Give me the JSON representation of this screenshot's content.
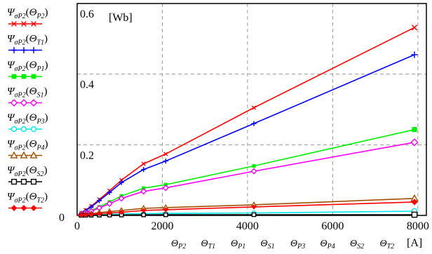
{
  "chart_data": {
    "type": "line",
    "title": "",
    "y_unit": "[Wb]",
    "x_unit": "[A]",
    "xlim": [
      0,
      8200
    ],
    "ylim": [
      0,
      0.6
    ],
    "x_ticks": [
      "0",
      "2000",
      "4000",
      "6000",
      "8000"
    ],
    "x_tick_values": [
      0,
      2000,
      4000,
      6000,
      8000
    ],
    "y_ticks": [
      "0",
      "0.2",
      "0.4",
      "0.6"
    ],
    "y_tick_values": [
      0,
      0.2,
      0.4,
      0.6
    ],
    "x_axis_variables": [
      "Θ",
      "Θ",
      "Θ",
      "Θ",
      "Θ",
      "Θ",
      "Θ",
      "Θ"
    ],
    "x_axis_variable_subs": [
      "P2",
      "T1",
      "P1",
      "S1",
      "P3",
      "P4",
      "S2",
      "T2"
    ],
    "grid": true,
    "legend_position": "left",
    "series": [
      {
        "name": "Ψ",
        "sub": "σP2",
        "arg": "Θ",
        "arg_sub": "P2",
        "color": "#ff0000",
        "marker": "x",
        "x": [
          0,
          100,
          200,
          330,
          520,
          760,
          1040,
          1560,
          2080,
          4150,
          7920
        ],
        "y": [
          0,
          0.007,
          0.015,
          0.026,
          0.045,
          0.07,
          0.1,
          0.146,
          0.174,
          0.305,
          0.532
        ]
      },
      {
        "name": "Ψ",
        "sub": "σP2",
        "arg": "Θ",
        "arg_sub": "T1",
        "color": "#0000ff",
        "marker": "+",
        "x": [
          0,
          100,
          200,
          330,
          520,
          760,
          1040,
          1560,
          2080,
          4150,
          7920
        ],
        "y": [
          0,
          0.006,
          0.013,
          0.024,
          0.042,
          0.065,
          0.093,
          0.13,
          0.154,
          0.26,
          0.455
        ]
      },
      {
        "name": "Ψ",
        "sub": "σP2",
        "arg": "Θ",
        "arg_sub": "P1",
        "color": "#00ee00",
        "marker": "square",
        "x": [
          0,
          100,
          200,
          330,
          520,
          760,
          1040,
          1560,
          2080,
          4150,
          7920
        ],
        "y": [
          0,
          0.004,
          0.008,
          0.014,
          0.024,
          0.038,
          0.055,
          0.077,
          0.087,
          0.14,
          0.243
        ]
      },
      {
        "name": "Ψ",
        "sub": "σP2",
        "arg": "Θ",
        "arg_sub": "S1",
        "color": "#ff00ff",
        "marker": "diamond-open",
        "x": [
          0,
          100,
          200,
          330,
          520,
          760,
          1040,
          1560,
          2080,
          4150,
          7920
        ],
        "y": [
          0,
          0.003,
          0.007,
          0.012,
          0.021,
          0.033,
          0.048,
          0.068,
          0.078,
          0.125,
          0.207
        ]
      },
      {
        "name": "Ψ",
        "sub": "σP2",
        "arg": "Θ",
        "arg_sub": "P3",
        "color": "#00e5e5",
        "marker": "circle-open",
        "x": [
          0,
          100,
          200,
          330,
          520,
          760,
          1040,
          1560,
          2080,
          4150,
          7920
        ],
        "y": [
          0,
          0.0005,
          0.001,
          0.0015,
          0.002,
          0.003,
          0.004,
          0.005,
          0.0055,
          0.007,
          0.012
        ]
      },
      {
        "name": "Ψ",
        "sub": "σP2",
        "arg": "Θ",
        "arg_sub": "P4",
        "color": "#a05000",
        "marker": "triangle-open",
        "x": [
          0,
          100,
          200,
          330,
          520,
          760,
          1040,
          1560,
          2080,
          4150,
          7920
        ],
        "y": [
          0,
          0.0015,
          0.003,
          0.005,
          0.008,
          0.011,
          0.014,
          0.02,
          0.022,
          0.03,
          0.048
        ]
      },
      {
        "name": "Ψ",
        "sub": "σP2",
        "arg": "Θ",
        "arg_sub": "S2",
        "color": "#000000",
        "marker": "square-open",
        "x": [
          0,
          100,
          200,
          330,
          520,
          760,
          1040,
          1560,
          2080,
          4150,
          7920
        ],
        "y": [
          0,
          0.0002,
          0.0004,
          0.0006,
          0.0008,
          0.001,
          0.0012,
          0.0015,
          0.0017,
          0.002,
          0.002
        ]
      },
      {
        "name": "Ψ",
        "sub": "σP2",
        "arg": "Θ",
        "arg_sub": "T2",
        "color": "#ff0000",
        "marker": "diamond",
        "x": [
          0,
          100,
          200,
          330,
          520,
          760,
          1040,
          1560,
          2080,
          4150,
          7920
        ],
        "y": [
          0,
          0.001,
          0.002,
          0.003,
          0.005,
          0.007,
          0.009,
          0.014,
          0.016,
          0.024,
          0.038
        ]
      }
    ]
  }
}
